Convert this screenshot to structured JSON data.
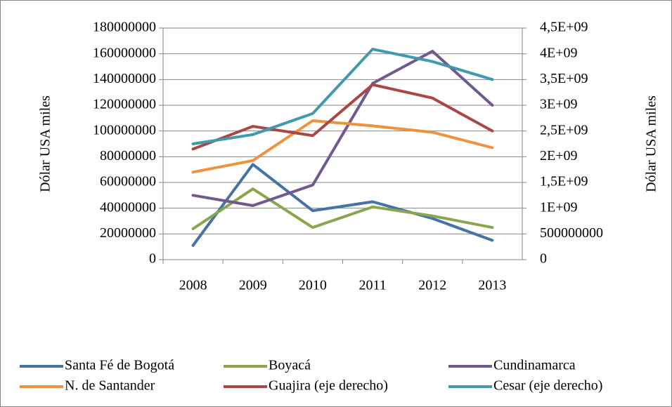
{
  "chart_data": {
    "type": "line",
    "categories": [
      "2008",
      "2009",
      "2010",
      "2011",
      "2012",
      "2013"
    ],
    "ylabel": "Dólar USA miles",
    "y2label": "Dólar USA miles",
    "ylim": [
      0,
      180000000
    ],
    "yticks": [
      0,
      20000000,
      40000000,
      60000000,
      80000000,
      100000000,
      120000000,
      140000000,
      160000000,
      180000000
    ],
    "y2lim": [
      0,
      4500000000
    ],
    "y2ticks": [
      0,
      500000000,
      {
        "value": 1000000000,
        "label": "1E+09"
      },
      {
        "value": 1500000000,
        "label": "1,5E+09"
      },
      {
        "value": 2000000000,
        "label": "2E+09"
      },
      {
        "value": 2500000000,
        "label": "2,5E+09"
      },
      {
        "value": 3000000000,
        "label": "3E+09"
      },
      {
        "value": 3500000000,
        "label": "3,5E+09"
      },
      {
        "value": 4000000000,
        "label": "4E+09"
      },
      {
        "value": 4500000000,
        "label": "4,5E+09"
      }
    ],
    "grid": true,
    "legend": "bottom",
    "series": [
      {
        "name": "Santa Fé de Bogotá",
        "color": "#4572a7",
        "values": [
          11000000,
          74000000,
          38000000,
          45000000,
          32000000,
          15000000
        ]
      },
      {
        "name": "Boyacá",
        "color": "#89a54e",
        "values": [
          24000000,
          55000000,
          25000000,
          41000000,
          34000000,
          25000000
        ]
      },
      {
        "name": "Cundinamarca",
        "color": "#71588f",
        "values": [
          50000000,
          42000000,
          58000000,
          137000000,
          162000000,
          120000000
        ]
      },
      {
        "name": "N. de Santander",
        "color": "#f0923d",
        "values": [
          68000000,
          77000000,
          108000000,
          104000000,
          99000000,
          87000000
        ]
      },
      {
        "name": "Guajira (eje derecho)",
        "color": "#aa4643",
        "axis": "y2",
        "values": [
          2150000000,
          2590000000,
          2410000000,
          3400000000,
          3140000000,
          2500000000
        ]
      },
      {
        "name": "Cesar (eje derecho)",
        "color": "#4198af",
        "axis": "y2",
        "values": [
          2250000000,
          2430000000,
          2840000000,
          4090000000,
          3850000000,
          3500000000
        ]
      }
    ]
  }
}
